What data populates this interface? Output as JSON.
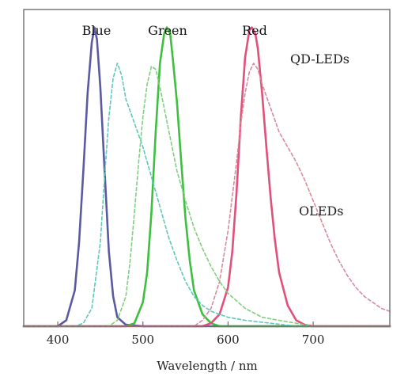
{
  "chart_data": {
    "type": "line",
    "title": "",
    "xlabel": "Wavelength / nm",
    "ylabel": "",
    "xlim": [
      360,
      790
    ],
    "ylim": [
      0,
      1.06
    ],
    "xticks": [
      400,
      500,
      600,
      700
    ],
    "grid": false,
    "annotations": [
      {
        "text": "QD-LEDs",
        "x": 660,
        "y": 0.97
      },
      {
        "text": "OLEDs",
        "x": 680,
        "y": 0.42
      }
    ],
    "series": [
      {
        "name": "Blue",
        "group": "QD-LEDs",
        "style": "solid",
        "color": "#5a5aa0",
        "x": [
          360,
          400,
          410,
          420,
          425,
          430,
          435,
          440,
          443,
          446,
          450,
          455,
          460,
          465,
          470,
          480,
          500,
          790
        ],
        "y": [
          0,
          0,
          0.02,
          0.12,
          0.28,
          0.52,
          0.78,
          0.95,
          1.0,
          0.96,
          0.8,
          0.52,
          0.25,
          0.1,
          0.03,
          0.005,
          0,
          0
        ]
      },
      {
        "name": "Green",
        "group": "QD-LEDs",
        "style": "solid",
        "color": "#3fbf3f",
        "x": [
          360,
          480,
          490,
          500,
          505,
          510,
          515,
          520,
          525,
          528,
          532,
          535,
          540,
          545,
          550,
          555,
          560,
          570,
          580,
          590,
          790
        ],
        "y": [
          0,
          0,
          0.01,
          0.08,
          0.18,
          0.38,
          0.65,
          0.88,
          0.98,
          1.0,
          0.98,
          0.9,
          0.75,
          0.55,
          0.36,
          0.22,
          0.12,
          0.04,
          0.01,
          0,
          0
        ]
      },
      {
        "name": "Red",
        "group": "QD-LEDs",
        "style": "solid",
        "color": "#e0507a",
        "x": [
          360,
          570,
          580,
          590,
          600,
          605,
          610,
          615,
          620,
          625,
          628,
          632,
          635,
          640,
          645,
          650,
          655,
          660,
          670,
          680,
          690,
          700,
          790
        ],
        "y": [
          0,
          0,
          0.01,
          0.04,
          0.13,
          0.25,
          0.45,
          0.7,
          0.9,
          0.99,
          1.0,
          0.98,
          0.93,
          0.78,
          0.6,
          0.43,
          0.29,
          0.18,
          0.07,
          0.02,
          0.005,
          0,
          0
        ]
      },
      {
        "name": "Blue",
        "group": "OLEDs",
        "style": "dashed",
        "color": "#5fc8b8",
        "x": [
          360,
          420,
          430,
          440,
          450,
          455,
          460,
          465,
          470,
          475,
          480,
          490,
          500,
          510,
          520,
          530,
          540,
          550,
          560,
          570,
          580,
          600,
          620,
          650,
          680,
          790
        ],
        "y": [
          0,
          0,
          0.01,
          0.06,
          0.28,
          0.5,
          0.7,
          0.83,
          0.88,
          0.84,
          0.76,
          0.68,
          0.6,
          0.5,
          0.4,
          0.3,
          0.22,
          0.15,
          0.1,
          0.07,
          0.05,
          0.03,
          0.02,
          0.01,
          0,
          0
        ]
      },
      {
        "name": "Green",
        "group": "OLEDs",
        "style": "dashed",
        "color": "#7fcf7f",
        "x": [
          360,
          460,
          470,
          480,
          485,
          490,
          495,
          500,
          505,
          510,
          515,
          520,
          530,
          540,
          550,
          560,
          570,
          580,
          590,
          600,
          620,
          640,
          660,
          680,
          700,
          790
        ],
        "y": [
          0,
          0,
          0.02,
          0.1,
          0.22,
          0.38,
          0.55,
          0.7,
          0.81,
          0.87,
          0.86,
          0.8,
          0.66,
          0.52,
          0.42,
          0.33,
          0.26,
          0.2,
          0.15,
          0.11,
          0.06,
          0.03,
          0.02,
          0.01,
          0,
          0
        ]
      },
      {
        "name": "Red",
        "group": "OLEDs",
        "style": "dashed",
        "color": "#d98a9a",
        "x": [
          360,
          560,
          570,
          580,
          590,
          600,
          610,
          615,
          620,
          625,
          630,
          635,
          640,
          650,
          660,
          670,
          680,
          690,
          700,
          710,
          720,
          730,
          740,
          750,
          760,
          770,
          780,
          790
        ],
        "y": [
          0,
          0,
          0.02,
          0.06,
          0.15,
          0.32,
          0.55,
          0.68,
          0.78,
          0.85,
          0.88,
          0.86,
          0.81,
          0.73,
          0.65,
          0.6,
          0.55,
          0.49,
          0.42,
          0.35,
          0.28,
          0.22,
          0.17,
          0.13,
          0.1,
          0.08,
          0.06,
          0.05
        ]
      }
    ]
  }
}
